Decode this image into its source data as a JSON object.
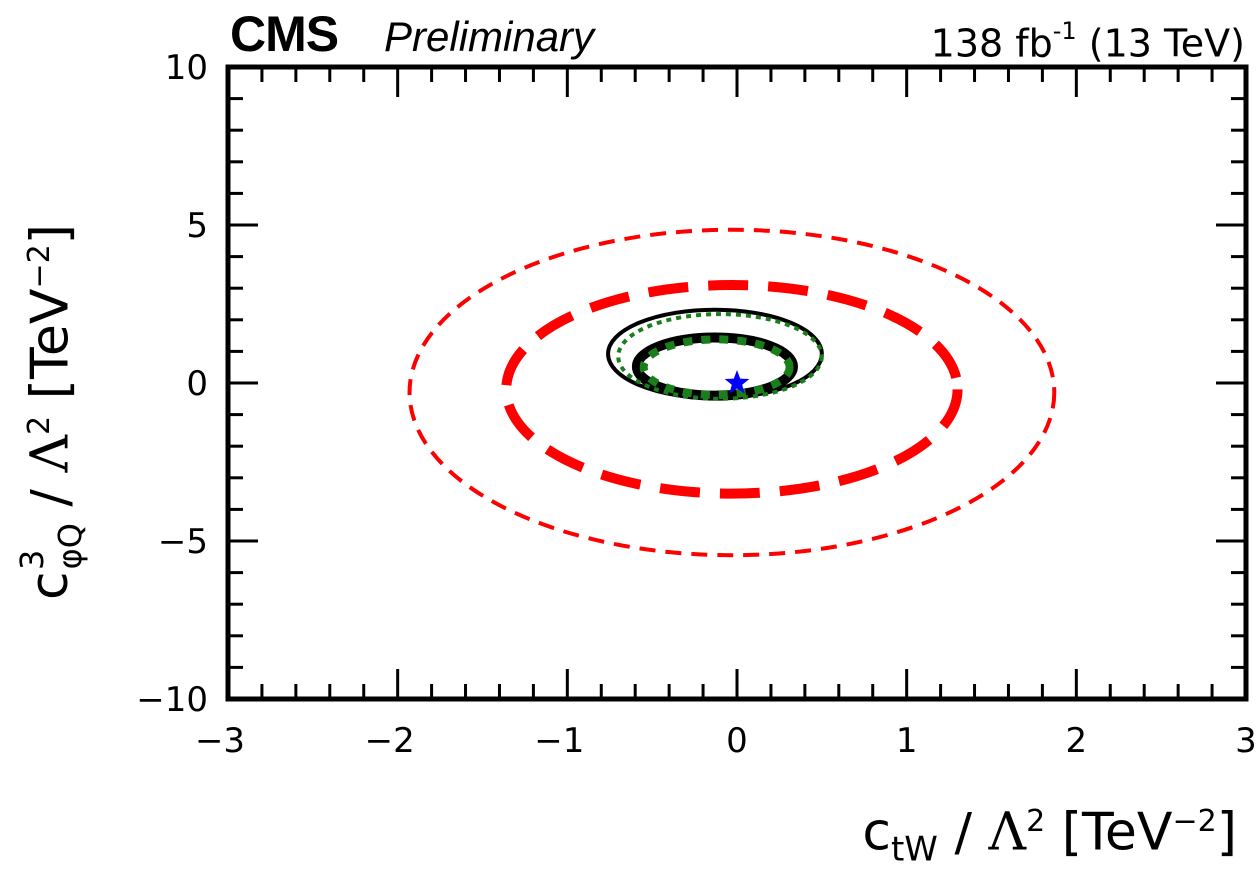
{
  "header": {
    "experiment": "CMS",
    "status": "Preliminary",
    "luminosity": "138 fb",
    "lumi_exponent": "-1",
    "energy": "(13 TeV)"
  },
  "axes": {
    "xlabel_main": "c",
    "xlabel_sub": "tW",
    "xlabel_rest": "/",
    "ylabel_main": "c",
    "ylabel_sup": "3",
    "ylabel_sub": "φQ",
    "lambda": "Λ",
    "lambda_exp": "2",
    "unit_open": "[TeV",
    "unit_exp": "−2",
    "unit_close": "]"
  },
  "chart_data": {
    "type": "line",
    "title": "CMS Preliminary, 138 fb-1 (13 TeV)",
    "xlabel": "c_tW / Λ^2 [TeV^-2]",
    "ylabel": "c_φQ^3 / Λ^2 [TeV^-2]",
    "xlim": [
      -3,
      3
    ],
    "ylim": [
      -10,
      10
    ],
    "x_ticks": [
      -3,
      -2,
      -1,
      0,
      1,
      2,
      3
    ],
    "x_tick_labels": [
      "−3",
      "−2",
      "−1",
      "0",
      "1",
      "2",
      "3"
    ],
    "y_ticks": [
      -10,
      -5,
      0,
      5,
      10
    ],
    "y_tick_labels": [
      "−10",
      "−5",
      "0",
      "5",
      "10"
    ],
    "legend": "none",
    "series": [
      {
        "name": "red-outer-contour",
        "shape": "ellipse",
        "cx": -0.03,
        "cy": -0.3,
        "rx": 1.9,
        "ry": 5.15,
        "color": "#ff0000",
        "style": "dashed-thin"
      },
      {
        "name": "red-inner-contour",
        "shape": "ellipse",
        "cx": -0.03,
        "cy": -0.2,
        "rx": 1.33,
        "ry": 3.3,
        "color": "#ff0000",
        "style": "dashed-thick"
      },
      {
        "name": "black-outer-contour",
        "shape": "ellipse",
        "cx": -0.13,
        "cy": 0.92,
        "rx": 0.63,
        "ry": 1.4,
        "color": "#000000",
        "style": "solid-thin"
      },
      {
        "name": "black-inner-contour",
        "shape": "ellipse",
        "cx": -0.13,
        "cy": 0.52,
        "rx": 0.46,
        "ry": 0.92,
        "color": "#000000",
        "style": "solid-thick"
      },
      {
        "name": "green-outer-contour",
        "shape": "ellipse",
        "cx": -0.1,
        "cy": 0.84,
        "rx": 0.6,
        "ry": 1.34,
        "color": "#1a7f1a",
        "style": "dotted-thin"
      },
      {
        "name": "green-inner-contour",
        "shape": "ellipse",
        "cx": -0.12,
        "cy": 0.5,
        "rx": 0.43,
        "ry": 0.88,
        "color": "#1a7f1a",
        "style": "dotted-thick"
      }
    ],
    "best_fit": {
      "x": 0.0,
      "y": 0.0,
      "marker": "star",
      "color": "#0000ff"
    }
  }
}
